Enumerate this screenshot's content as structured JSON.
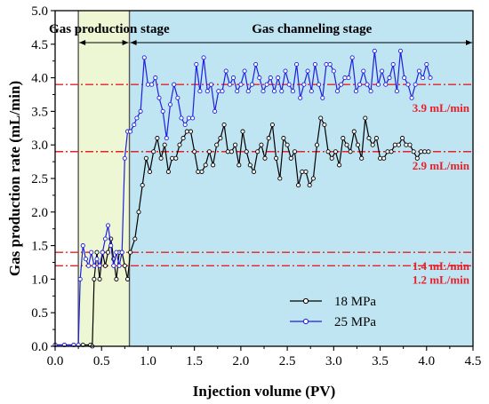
{
  "chart_data": {
    "type": "line",
    "xlabel": "Injection volume (PV)",
    "ylabel": "Gas production rate (mL/min)",
    "xlim": [
      0.0,
      4.5
    ],
    "ylim": [
      0.0,
      5.0
    ],
    "xticks": [
      0.0,
      0.5,
      1.0,
      1.5,
      2.0,
      2.5,
      3.0,
      3.5,
      4.0,
      4.5
    ],
    "yticks": [
      0.0,
      0.5,
      1.0,
      1.5,
      2.0,
      2.5,
      3.0,
      3.5,
      4.0,
      4.5,
      5.0
    ],
    "xtick_labels": [
      "0.0",
      "0.5",
      "1.0",
      "1.5",
      "2.0",
      "2.5",
      "3.0",
      "3.5",
      "4.0",
      "4.5"
    ],
    "ytick_labels": [
      "0.0",
      "0.5",
      "1.0",
      "1.5",
      "2.0",
      "2.5",
      "3.0",
      "3.5",
      "4.0",
      "4.5",
      "5.0"
    ],
    "grid": false,
    "legend_position": "lower-right",
    "stages": [
      {
        "label": "Gas production stage",
        "x_start": 0.25,
        "x_end": 0.8,
        "color": "#eef7d4"
      },
      {
        "label": "Gas channeling stage",
        "x_start": 0.8,
        "x_end": 4.5,
        "color": "#bfe4f2"
      }
    ],
    "reference_lines": [
      {
        "y": 3.9,
        "label": "3.9 mL/min"
      },
      {
        "y": 2.9,
        "label": "2.9 mL/min"
      },
      {
        "y": 1.4,
        "label": "1.4 mL/min"
      },
      {
        "y": 1.2,
        "label": "1.2 mL/min"
      }
    ],
    "reference_color": "#e8202a",
    "series": [
      {
        "name": "18 MPa",
        "color": "#000000",
        "x": [
          0.0,
          0.1,
          0.2,
          0.3,
          0.38,
          0.4,
          0.42,
          0.45,
          0.48,
          0.51,
          0.54,
          0.57,
          0.6,
          0.63,
          0.66,
          0.69,
          0.72,
          0.75,
          0.78,
          0.81,
          0.86,
          0.9,
          0.94,
          0.98,
          1.02,
          1.06,
          1.1,
          1.14,
          1.18,
          1.22,
          1.26,
          1.3,
          1.34,
          1.38,
          1.42,
          1.46,
          1.5,
          1.54,
          1.58,
          1.62,
          1.66,
          1.7,
          1.74,
          1.78,
          1.82,
          1.86,
          1.9,
          1.94,
          1.98,
          2.02,
          2.06,
          2.1,
          2.14,
          2.18,
          2.22,
          2.26,
          2.3,
          2.34,
          2.38,
          2.42,
          2.46,
          2.5,
          2.54,
          2.58,
          2.62,
          2.66,
          2.7,
          2.74,
          2.78,
          2.82,
          2.86,
          2.9,
          2.94,
          2.98,
          3.02,
          3.06,
          3.1,
          3.14,
          3.18,
          3.22,
          3.26,
          3.3,
          3.34,
          3.38,
          3.42,
          3.46,
          3.5,
          3.54,
          3.58,
          3.62,
          3.66,
          3.7,
          3.74,
          3.78,
          3.82,
          3.86,
          3.9,
          3.94,
          3.98,
          4.02
        ],
        "y": [
          0.02,
          0.02,
          0.02,
          0.02,
          0.02,
          0.0,
          1.0,
          1.4,
          1.0,
          1.4,
          1.2,
          1.4,
          1.6,
          1.3,
          1.0,
          1.4,
          1.4,
          1.2,
          1.0,
          1.4,
          1.6,
          2.0,
          2.4,
          2.8,
          2.6,
          2.9,
          3.1,
          2.8,
          3.0,
          2.6,
          2.8,
          2.8,
          3.0,
          3.1,
          3.2,
          3.2,
          2.9,
          2.6,
          2.6,
          2.7,
          2.9,
          2.7,
          3.0,
          3.1,
          3.3,
          2.9,
          2.9,
          3.0,
          2.7,
          3.2,
          2.9,
          2.7,
          2.6,
          2.9,
          3.0,
          2.8,
          3.1,
          3.3,
          2.8,
          2.5,
          3.1,
          3.0,
          2.8,
          2.9,
          2.4,
          2.6,
          2.6,
          2.4,
          2.5,
          3.0,
          3.4,
          3.3,
          2.9,
          2.8,
          2.9,
          2.7,
          3.1,
          3.0,
          2.9,
          3.2,
          3.0,
          2.8,
          3.4,
          3.1,
          3.0,
          3.1,
          2.8,
          2.8,
          2.9,
          2.9,
          3.0,
          3.0,
          3.1,
          3.0,
          3.0,
          2.9,
          2.8,
          2.9,
          2.9,
          2.9
        ],
        "display_y": [
          0.02,
          0.02,
          0.02,
          0.02,
          0.02,
          0.0,
          1.0,
          1.4,
          1.0,
          1.4,
          1.2,
          1.4,
          1.6,
          1.3,
          1.0,
          1.4,
          1.4,
          1.2,
          1.0,
          1.4,
          1.6,
          2.0,
          2.4,
          2.8,
          2.6,
          2.9,
          3.1,
          2.8,
          3.0,
          2.6,
          2.8,
          2.8,
          3.0,
          3.1,
          3.2,
          3.2,
          2.9,
          2.6,
          2.6,
          2.7,
          2.9,
          2.7,
          3.0,
          3.1,
          3.3,
          2.9,
          2.9,
          3.0,
          2.7,
          3.2,
          2.9,
          2.7,
          2.6,
          2.9,
          3.0,
          2.8,
          3.1,
          3.3,
          2.8,
          2.5,
          3.1,
          3.0,
          2.8,
          2.9,
          2.4,
          2.6,
          2.6,
          2.4,
          2.5,
          3.0,
          3.4,
          3.3,
          2.9,
          2.8,
          2.9,
          2.7,
          3.1,
          3.0,
          2.9,
          3.2,
          3.0,
          2.8,
          3.4,
          3.1,
          3.0,
          3.1,
          2.8,
          2.8,
          2.9,
          2.9,
          3.0,
          3.0,
          3.1,
          3.0,
          3.0,
          2.9,
          2.8,
          2.9,
          2.9,
          2.9
        ]
      },
      {
        "name": "25 MPa",
        "color": "#1f1fe0",
        "x": [
          0.0,
          0.1,
          0.2,
          0.25,
          0.27,
          0.3,
          0.33,
          0.36,
          0.39,
          0.42,
          0.45,
          0.48,
          0.51,
          0.54,
          0.57,
          0.6,
          0.63,
          0.66,
          0.69,
          0.72,
          0.75,
          0.78,
          0.81,
          0.85,
          0.88,
          0.92,
          0.96,
          1.0,
          1.04,
          1.08,
          1.12,
          1.16,
          1.2,
          1.24,
          1.28,
          1.32,
          1.36,
          1.4,
          1.44,
          1.48,
          1.52,
          1.56,
          1.6,
          1.64,
          1.68,
          1.72,
          1.76,
          1.8,
          1.84,
          1.88,
          1.92,
          1.96,
          2.0,
          2.04,
          2.08,
          2.12,
          2.16,
          2.2,
          2.24,
          2.28,
          2.32,
          2.36,
          2.4,
          2.44,
          2.48,
          2.52,
          2.56,
          2.6,
          2.64,
          2.68,
          2.72,
          2.76,
          2.8,
          2.84,
          2.88,
          2.92,
          2.96,
          3.0,
          3.04,
          3.08,
          3.12,
          3.16,
          3.2,
          3.24,
          3.28,
          3.32,
          3.36,
          3.4,
          3.44,
          3.48,
          3.52,
          3.56,
          3.6,
          3.64,
          3.68,
          3.72,
          3.76,
          3.8,
          3.84,
          3.88,
          3.92,
          3.96,
          4.0,
          4.04
        ],
        "y": [
          0.02,
          0.02,
          0.02,
          0.02,
          1.0,
          1.5,
          1.3,
          1.2,
          1.4,
          1.2,
          1.3,
          1.2,
          1.4,
          1.6,
          1.8,
          1.5,
          1.2,
          1.4,
          1.2,
          1.4,
          2.8,
          3.2,
          3.2,
          3.3,
          3.4,
          3.5,
          4.3,
          3.9,
          3.9,
          4.0,
          3.7,
          3.5,
          3.1,
          3.6,
          3.9,
          3.7,
          3.4,
          3.3,
          3.4,
          3.4,
          4.2,
          3.8,
          4.3,
          3.8,
          3.9,
          3.5,
          3.8,
          3.8,
          4.1,
          3.9,
          4.0,
          3.8,
          3.9,
          4.1,
          3.8,
          3.9,
          4.2,
          4.0,
          3.8,
          3.9,
          4.0,
          3.8,
          4.0,
          3.8,
          4.1,
          3.9,
          3.8,
          4.2,
          3.7,
          3.9,
          4.1,
          3.8,
          4.2,
          3.9,
          3.7,
          4.2,
          4.2,
          4.1,
          3.8,
          3.9,
          4.0,
          4.0,
          4.3,
          3.8,
          3.9,
          4.1,
          3.9,
          3.8,
          4.4,
          3.9,
          4.1,
          3.9,
          4.0,
          4.2,
          3.8,
          4.4,
          4.0,
          3.9,
          3.7,
          3.9,
          4.1,
          4.0,
          4.2,
          4.0
        ],
        "display_y": [
          0.02,
          0.02,
          0.02,
          0.02,
          1.0,
          1.5,
          1.3,
          1.2,
          1.4,
          1.2,
          1.3,
          1.2,
          1.4,
          1.6,
          1.8,
          1.5,
          1.2,
          1.4,
          1.2,
          1.4,
          2.8,
          3.2,
          3.2,
          3.3,
          3.4,
          3.5,
          4.3,
          3.9,
          3.9,
          4.0,
          3.7,
          3.5,
          3.1,
          3.6,
          3.9,
          3.7,
          3.4,
          3.3,
          3.4,
          3.4,
          4.2,
          3.8,
          4.3,
          3.8,
          3.9,
          3.5,
          3.8,
          3.8,
          4.1,
          3.9,
          4.0,
          3.8,
          3.9,
          4.1,
          3.8,
          3.9,
          4.2,
          4.0,
          3.8,
          3.9,
          4.0,
          3.8,
          4.0,
          3.8,
          4.1,
          3.9,
          3.8,
          4.2,
          3.7,
          3.9,
          4.1,
          3.8,
          4.2,
          3.9,
          3.7,
          4.2,
          4.2,
          4.1,
          3.8,
          3.9,
          4.0,
          4.0,
          4.3,
          3.8,
          3.9,
          4.1,
          3.9,
          3.8,
          4.4,
          3.9,
          4.1,
          3.9,
          4.0,
          4.2,
          3.8,
          4.4,
          4.0,
          3.9,
          3.7,
          3.9,
          4.1,
          4.0,
          4.2,
          4.0
        ]
      }
    ]
  }
}
